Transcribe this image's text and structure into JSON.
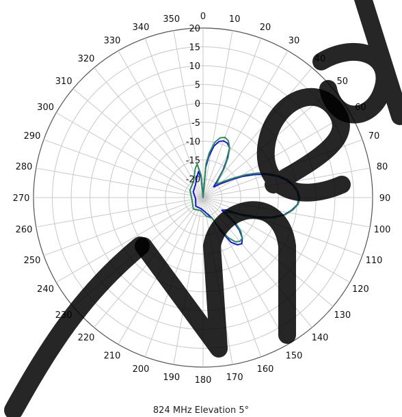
{
  "chart_data": {
    "type": "polar-line",
    "title": "824 MHz Elevation 5°",
    "angle_ticks": [
      0,
      10,
      20,
      30,
      40,
      50,
      60,
      70,
      80,
      90,
      100,
      110,
      120,
      130,
      140,
      150,
      160,
      170,
      180,
      190,
      200,
      210,
      220,
      230,
      240,
      250,
      260,
      270,
      280,
      290,
      300,
      310,
      320,
      330,
      340,
      350
    ],
    "radial_ticks": [
      20,
      15,
      10,
      5,
      0,
      -5,
      -10,
      -15,
      -20
    ],
    "rlim": [
      -25,
      20
    ],
    "grid": true,
    "series": [
      {
        "color": "#1515e0",
        "points": [
          [
            0,
            -25
          ],
          [
            5,
            -17
          ],
          [
            8,
            -14
          ],
          [
            12,
            -11
          ],
          [
            16,
            -9.5
          ],
          [
            20,
            -9
          ],
          [
            24,
            -9.2
          ],
          [
            28,
            -10
          ],
          [
            32,
            -13
          ],
          [
            36,
            -16
          ],
          [
            40,
            -19
          ],
          [
            45,
            -21
          ],
          [
            52,
            -19
          ],
          [
            58,
            -16
          ],
          [
            62,
            -13
          ],
          [
            66,
            -10
          ],
          [
            70,
            -7
          ],
          [
            74,
            -4.5
          ],
          [
            78,
            -2.5
          ],
          [
            82,
            -1
          ],
          [
            86,
            0
          ],
          [
            90,
            0.5
          ],
          [
            94,
            0.2
          ],
          [
            98,
            -1.2
          ],
          [
            102,
            -3
          ],
          [
            106,
            -6
          ],
          [
            110,
            -10
          ],
          [
            114,
            -14
          ],
          [
            118,
            -18
          ],
          [
            124,
            -19
          ],
          [
            128,
            -15
          ],
          [
            132,
            -12
          ],
          [
            136,
            -10
          ],
          [
            140,
            -9
          ],
          [
            144,
            -9.5
          ],
          [
            148,
            -11
          ],
          [
            152,
            -15
          ],
          [
            156,
            -19
          ],
          [
            170,
            -21
          ],
          [
            190,
            -22
          ],
          [
            220,
            -22
          ],
          [
            260,
            -23
          ],
          [
            300,
            -22
          ],
          [
            330,
            -21
          ],
          [
            345,
            -19
          ],
          [
            350,
            -18
          ],
          [
            355,
            -20
          ],
          [
            360,
            -25
          ]
        ]
      },
      {
        "color": "#2a8a5a",
        "points": [
          [
            0,
            -25
          ],
          [
            5,
            -16
          ],
          [
            8,
            -13
          ],
          [
            12,
            -10
          ],
          [
            16,
            -8.5
          ],
          [
            20,
            -8
          ],
          [
            24,
            -8.5
          ],
          [
            28,
            -10
          ],
          [
            32,
            -12.5
          ],
          [
            36,
            -15.5
          ],
          [
            40,
            -18.5
          ],
          [
            45,
            -20
          ],
          [
            52,
            -18
          ],
          [
            58,
            -15
          ],
          [
            62,
            -12
          ],
          [
            66,
            -9
          ],
          [
            70,
            -6.5
          ],
          [
            74,
            -4
          ],
          [
            78,
            -2
          ],
          [
            82,
            -0.8
          ],
          [
            86,
            0.2
          ],
          [
            90,
            0.7
          ],
          [
            94,
            0.3
          ],
          [
            98,
            -1
          ],
          [
            102,
            -2.8
          ],
          [
            106,
            -5.5
          ],
          [
            110,
            -9
          ],
          [
            114,
            -13
          ],
          [
            118,
            -16.5
          ],
          [
            124,
            -18
          ],
          [
            128,
            -14
          ],
          [
            132,
            -11.5
          ],
          [
            136,
            -10
          ],
          [
            140,
            -9.8
          ],
          [
            144,
            -10.5
          ],
          [
            148,
            -12.5
          ],
          [
            152,
            -16
          ],
          [
            156,
            -19
          ],
          [
            170,
            -20
          ],
          [
            190,
            -21.5
          ],
          [
            220,
            -21
          ],
          [
            260,
            -22
          ],
          [
            300,
            -21
          ],
          [
            330,
            -20
          ],
          [
            345,
            -17
          ],
          [
            350,
            -16
          ],
          [
            355,
            -19
          ],
          [
            360,
            -25
          ]
        ]
      }
    ]
  },
  "colors": {
    "grid": "#c8c8c8",
    "watermark": "#000000"
  }
}
